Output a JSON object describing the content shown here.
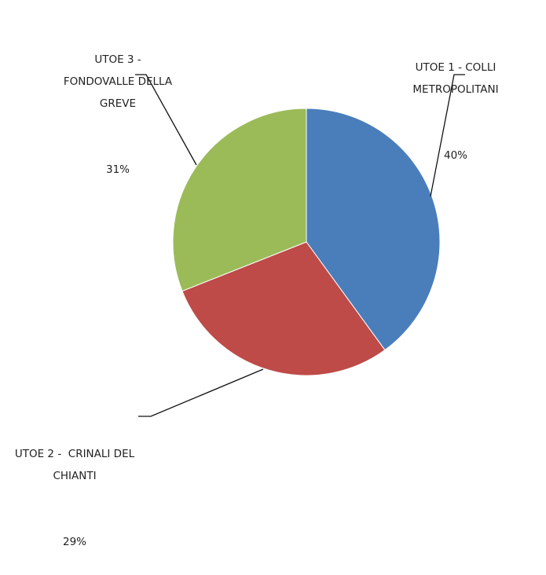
{
  "chart_data": {
    "type": "pie",
    "categories": [
      "UTOE 1 - COLLI METROPOLITANI",
      "UTOE 2 -  CRINALI DEL CHIANTI",
      "UTOE 3 - FONDOVALLE DELLA GREVE"
    ],
    "values": [
      40,
      29,
      31
    ],
    "value_labels": [
      "40%",
      "29%",
      "31%"
    ],
    "colors": [
      "#4a7ebb",
      "#be4b48",
      "#9bbb59"
    ]
  }
}
